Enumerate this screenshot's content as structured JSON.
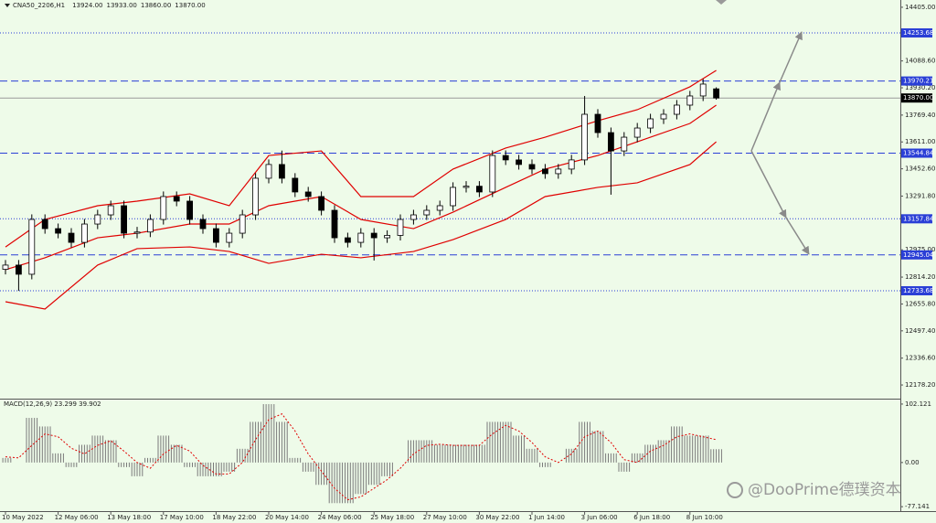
{
  "chart_data": [
    {
      "type": "candlestick",
      "title": "CNA50_2206,H1",
      "header_values": [
        "13924.00",
        "13933.00",
        "13860.00",
        "13870.00"
      ],
      "categories": [
        "10 May 2022",
        null,
        null,
        null,
        "12 May 06:00",
        null,
        null,
        null,
        "13 May 18:00",
        null,
        null,
        null,
        "17 May 10:00",
        null,
        null,
        null,
        "18 May 22:00",
        null,
        null,
        null,
        "20 May 14:00",
        null,
        null,
        null,
        "24 May 06:00",
        null,
        null,
        null,
        "25 May 18:00",
        null,
        null,
        null,
        "27 May 10:00",
        null,
        null,
        null,
        "30 May 22:00",
        null,
        null,
        null,
        "1 Jun 14:00",
        null,
        null,
        null,
        "3 Jun 06:00",
        null,
        null,
        null,
        "6 Jun 18:00",
        null,
        null,
        null,
        "8 Jun 10:00",
        null,
        null
      ],
      "open": [
        12860,
        12885,
        12831,
        13154,
        13100,
        13073,
        13019,
        13127,
        13181,
        13235,
        13073,
        13080,
        13154,
        13289,
        13262,
        13154,
        13100,
        13019,
        13073,
        13181,
        13397,
        13478,
        13397,
        13316,
        13289,
        13208,
        13046,
        13019,
        13073,
        13046,
        13060,
        13154,
        13181,
        13208,
        13235,
        13343,
        13350,
        13316,
        13531,
        13505,
        13478,
        13451,
        13424,
        13451,
        13505,
        13774,
        13666,
        13558,
        13639,
        13693,
        13747,
        13774,
        13828,
        13882,
        13924
      ],
      "high": [
        12915,
        12915,
        13184,
        13184,
        13130,
        13103,
        13157,
        13211,
        13265,
        13265,
        13110,
        13184,
        13319,
        13319,
        13292,
        13184,
        13130,
        13103,
        13211,
        13427,
        13508,
        13560,
        13427,
        13346,
        13319,
        13238,
        13076,
        13103,
        13103,
        13090,
        13184,
        13211,
        13238,
        13265,
        13373,
        13380,
        13380,
        13561,
        13561,
        13535,
        13508,
        13481,
        13481,
        13535,
        13882,
        13804,
        13696,
        13669,
        13723,
        13777,
        13804,
        13858,
        13912,
        13982,
        13933
      ],
      "low": [
        12830,
        12733,
        12801,
        13070,
        13043,
        12989,
        12989,
        13097,
        13151,
        13043,
        13043,
        13050,
        13124,
        13232,
        13124,
        13070,
        12989,
        12989,
        13043,
        13151,
        13367,
        13367,
        13286,
        13259,
        13178,
        13016,
        12989,
        12989,
        12912,
        13016,
        13030,
        13124,
        13151,
        13178,
        13205,
        13313,
        13286,
        13286,
        13475,
        13448,
        13421,
        13394,
        13394,
        13421,
        13475,
        13636,
        13300,
        13528,
        13609,
        13663,
        13717,
        13744,
        13798,
        13852,
        13860
      ],
      "close": [
        12885,
        12831,
        13154,
        13100,
        13073,
        13019,
        13127,
        13181,
        13235,
        13073,
        13080,
        13154,
        13289,
        13262,
        13154,
        13100,
        13019,
        13073,
        13181,
        13397,
        13478,
        13397,
        13316,
        13289,
        13208,
        13046,
        13019,
        13073,
        13046,
        13060,
        13154,
        13181,
        13208,
        13235,
        13343,
        13350,
        13316,
        13531,
        13505,
        13478,
        13451,
        13424,
        13451,
        13505,
        13774,
        13666,
        13558,
        13639,
        13693,
        13747,
        13774,
        13828,
        13882,
        13952,
        13870
      ],
      "up_color": "#ffffff",
      "down_color": "#000000",
      "bands": {
        "color": "#e00000",
        "x": [
          0,
          3,
          7,
          10,
          14,
          17,
          20,
          24,
          27,
          31,
          34,
          38,
          41,
          45,
          48,
          52,
          54
        ],
        "upper": [
          12992,
          13154,
          13235,
          13262,
          13305,
          13235,
          13531,
          13558,
          13289,
          13289,
          13451,
          13575,
          13639,
          13736,
          13801,
          13936,
          14033
        ],
        "middle": [
          12858,
          12928,
          13046,
          13073,
          13127,
          13127,
          13235,
          13289,
          13154,
          13100,
          13197,
          13343,
          13451,
          13531,
          13612,
          13720,
          13828
        ],
        "lower": [
          12669,
          12626,
          12885,
          12982,
          12992,
          12965,
          12895,
          12949,
          12928,
          12965,
          13035,
          13154,
          13289,
          13343,
          13370,
          13478,
          13612
        ]
      },
      "levels": [
        {
          "value": 14253.68,
          "label": "14253.68",
          "style": "dotted",
          "color": "#2a3fd6"
        },
        {
          "value": 13970.21,
          "label": "13970.21",
          "style": "dashed",
          "color": "#2a3fd6"
        },
        {
          "value": 13870,
          "label": "13870.00",
          "style": "solid",
          "color": "#000000"
        },
        {
          "value": 13544.84,
          "label": "13544.84",
          "style": "dashed",
          "color": "#2a3fd6"
        },
        {
          "value": 13157.84,
          "label": "13157.84",
          "style": "dotted",
          "color": "#2a3fd6"
        },
        {
          "value": 12945.04,
          "label": "12945.04",
          "style": "dashed",
          "color": "#2a3fd6"
        },
        {
          "value": 12733.68,
          "label": "12733.68",
          "style": "dotted",
          "color": "#2a3fd6"
        }
      ],
      "ylim": [
        12103,
        14437
      ],
      "yticks": [
        {
          "value": 14405,
          "label": "14405.00"
        },
        {
          "value": 14088.6,
          "label": "14088.60"
        },
        {
          "value": 13930.2,
          "label": "13930.20"
        },
        {
          "value": 13769.4,
          "label": "13769.40"
        },
        {
          "value": 13611,
          "label": "13611.00"
        },
        {
          "value": 13452.6,
          "label": "13452.60"
        },
        {
          "value": 13291.8,
          "label": "13291.80"
        },
        {
          "value": 12975,
          "label": "12975.00"
        },
        {
          "value": 12814.2,
          "label": "12814.20"
        },
        {
          "value": 12655.8,
          "label": "12655.80"
        },
        {
          "value": 12497.4,
          "label": "12497.40"
        },
        {
          "value": 12336.6,
          "label": "12336.60"
        },
        {
          "value": 12178.2,
          "label": "12178.20"
        }
      ],
      "grid": false
    },
    {
      "type": "bar",
      "title": "MACD(12,26,9)",
      "color": "#7a7a7a",
      "signal_color": "#e00000",
      "values": [
        8,
        0,
        78,
        63,
        16,
        -8,
        31,
        47,
        39,
        -8,
        -24,
        8,
        47,
        31,
        -8,
        -24,
        -24,
        -16,
        24,
        71,
        102,
        71,
        8,
        -16,
        -39,
        -71,
        -71,
        -55,
        -39,
        -24,
        0,
        39,
        39,
        31,
        31,
        31,
        31,
        71,
        71,
        47,
        24,
        -8,
        0,
        24,
        71,
        55,
        16,
        -16,
        16,
        31,
        39,
        63,
        47,
        47,
        23.299
      ],
      "signal": [
        10,
        8,
        30,
        50,
        45,
        25,
        15,
        30,
        38,
        20,
        0,
        -10,
        15,
        30,
        20,
        -5,
        -20,
        -20,
        0,
        40,
        75,
        85,
        55,
        15,
        -15,
        -45,
        -65,
        -60,
        -45,
        -30,
        -10,
        15,
        30,
        32,
        30,
        30,
        30,
        50,
        65,
        55,
        35,
        10,
        0,
        15,
        45,
        55,
        35,
        5,
        0,
        20,
        30,
        45,
        50,
        45,
        39.902
      ],
      "ylim": [
        -83.3,
        108.4
      ],
      "yticks": [
        102.121,
        {
          "value": 0,
          "label": "0.00"
        },
        -77.141
      ]
    }
  ],
  "watermark": "@DooPrime德璞资本"
}
